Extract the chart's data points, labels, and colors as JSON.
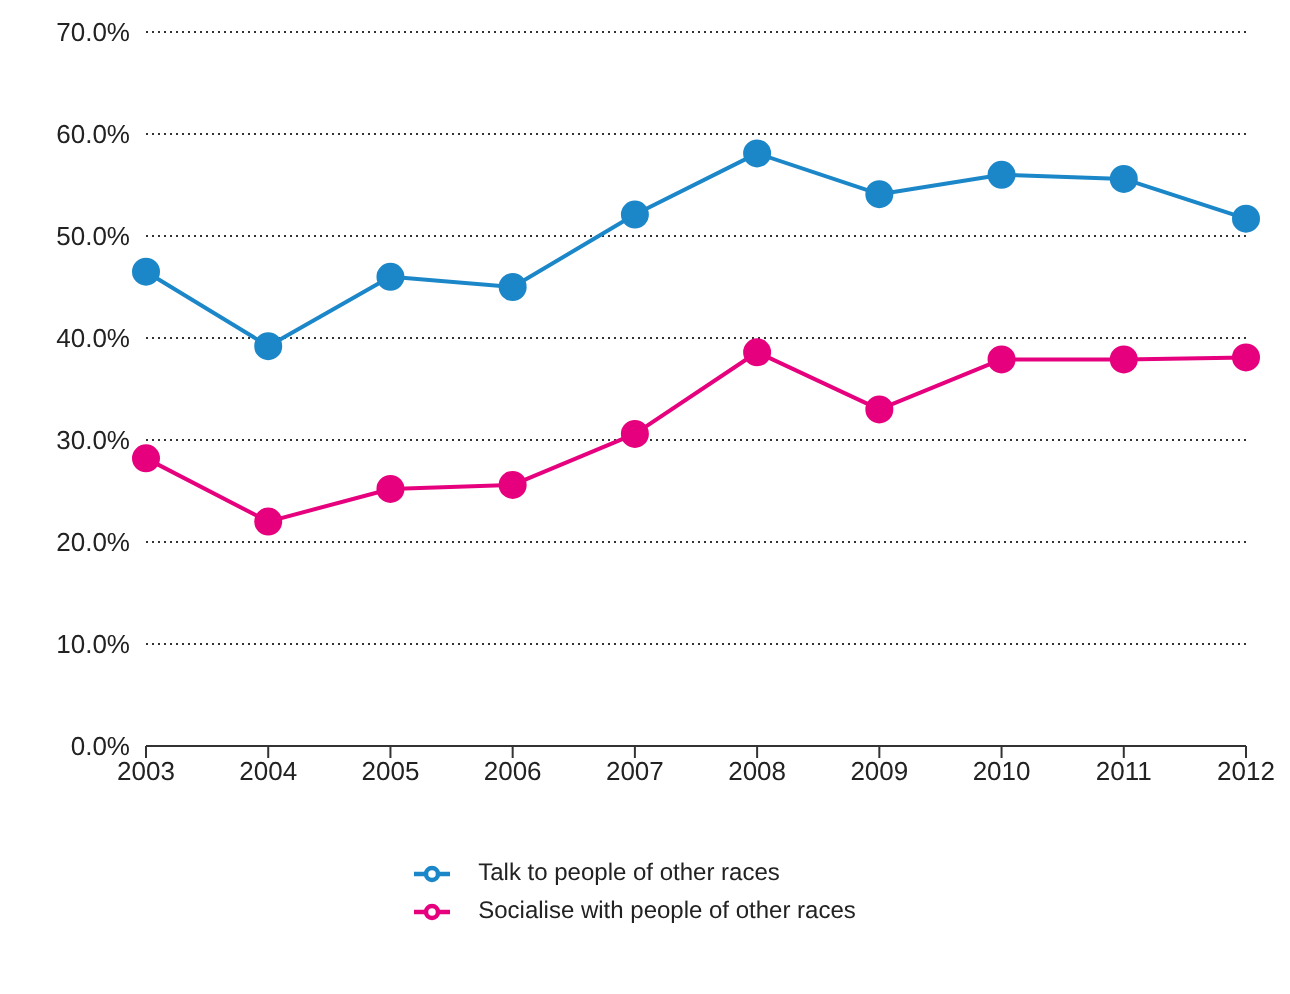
{
  "chart_data": {
    "type": "line",
    "categories": [
      "2003",
      "2004",
      "2005",
      "2006",
      "2007",
      "2008",
      "2009",
      "2010",
      "2011",
      "2012"
    ],
    "series": [
      {
        "name": "Talk to people of other races",
        "color": "#1b87c9",
        "values": [
          46.5,
          39.2,
          46.0,
          45.0,
          52.1,
          58.1,
          54.1,
          56.0,
          55.6,
          51.7
        ]
      },
      {
        "name": "Socialise with people of other races",
        "color": "#e6007e",
        "values": [
          28.2,
          22.0,
          25.2,
          25.6,
          30.6,
          38.6,
          33.0,
          37.9,
          37.9,
          38.1
        ]
      }
    ],
    "ylim": [
      0,
      70
    ],
    "yticks": [
      {
        "value": 0,
        "label": "0.0%"
      },
      {
        "value": 10,
        "label": "10.0%"
      },
      {
        "value": 20,
        "label": "20.0%"
      },
      {
        "value": 30,
        "label": "30.0%"
      },
      {
        "value": 40,
        "label": "40.0%"
      },
      {
        "value": 50,
        "label": "50.0%"
      },
      {
        "value": 60,
        "label": "60.0%"
      },
      {
        "value": 70,
        "label": "70.0%"
      }
    ],
    "grid": "y",
    "legend": "bottom",
    "marker": "circle",
    "line_style": "solid"
  }
}
